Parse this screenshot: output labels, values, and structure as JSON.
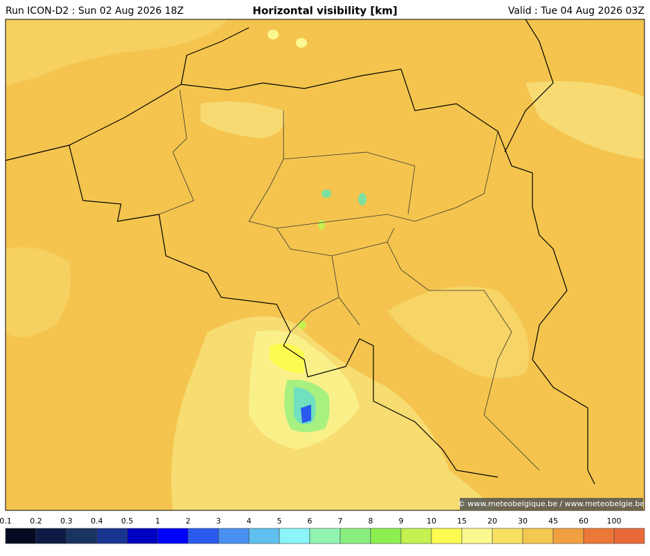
{
  "header": {
    "run": "Run ICON-D2 : Sun 02 Aug 2026 18Z",
    "title": "Horizontal visibility [km]",
    "valid": "Valid : Tue 04 Aug 2026 03Z"
  },
  "credit": "© www.meteobelgique.be / www.meteobelgie.be",
  "colorbar": {
    "labels": [
      0.1,
      0.2,
      0.3,
      0.4,
      0.5,
      1,
      2,
      3,
      4,
      5,
      6,
      7,
      8,
      9,
      10,
      15,
      20,
      30,
      45,
      60,
      100
    ],
    "colors": [
      "#060a20",
      "#0c1a44",
      "#1a3462",
      "#1a3590",
      "#0000c0",
      "#0000ff",
      "#2a5aee",
      "#4a90f0",
      "#60c0f0",
      "#8af4f8",
      "#90f4b0",
      "#88ee80",
      "#8cf050",
      "#c4f050",
      "#fcfc50",
      "#fcf890",
      "#f8e060",
      "#f4c850",
      "#f0a040",
      "#ec7838",
      "#e86838"
    ]
  }
}
